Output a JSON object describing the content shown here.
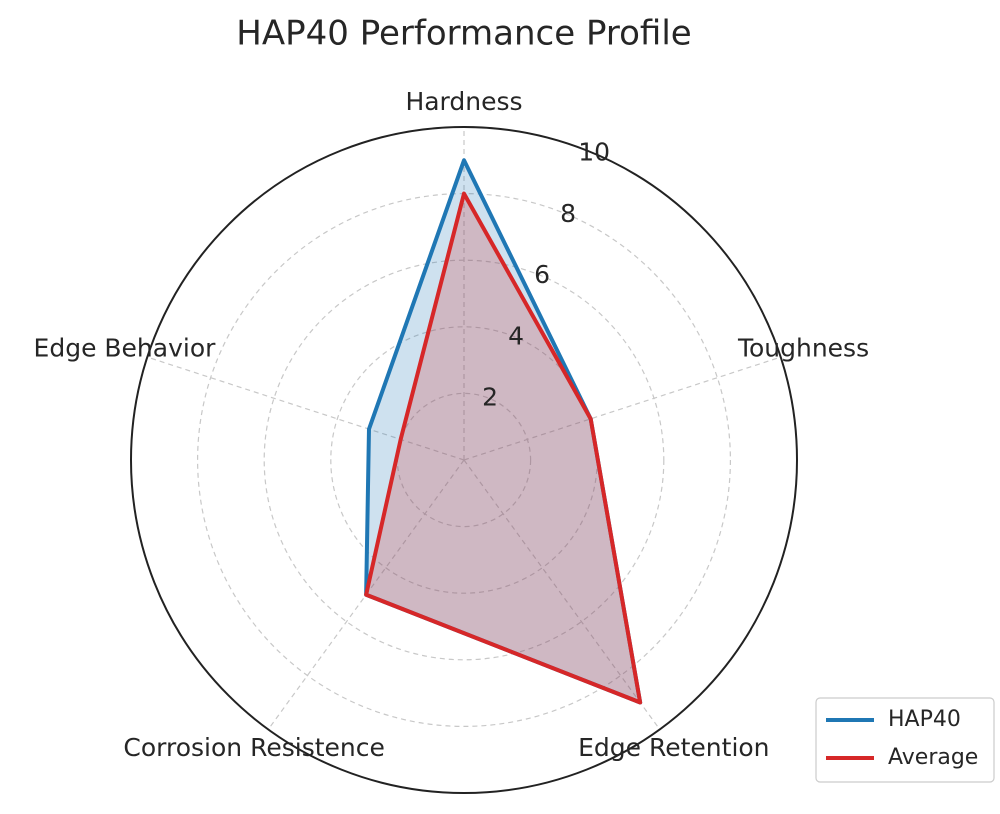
{
  "chart_data": {
    "type": "radar",
    "title": "HAP40 Performance Profile",
    "categories": [
      "Hardness",
      "Toughness",
      "Edge Retention",
      "Corrosion Resistence",
      "Edge Behavior"
    ],
    "series": [
      {
        "name": "HAP40",
        "color": "#1f77b4",
        "values": [
          9,
          4,
          9,
          5,
          3
        ]
      },
      {
        "name": "Average",
        "color": "#d62728",
        "values": [
          8,
          4,
          9,
          5,
          2
        ]
      }
    ],
    "ylim": [
      0,
      10
    ],
    "yticks": [
      2,
      4,
      6,
      8,
      10
    ],
    "grid": true,
    "legend": "lower right"
  }
}
